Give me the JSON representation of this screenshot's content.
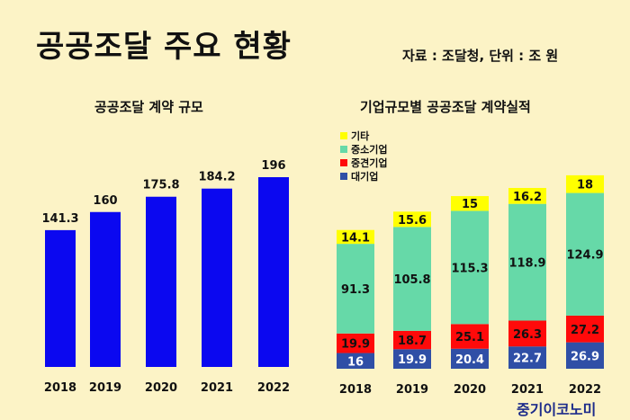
{
  "header": {
    "title": "공공조달 주요 현황",
    "source": "자료 : 조달청, 단위 : 조 원"
  },
  "brand": "중기이코노미",
  "colors": {
    "background": "#fcf3c6",
    "bar_blue": "#0b08f0",
    "etc_yellow": "#ffff00",
    "small_green": "#66d9a8",
    "mid_red": "#ff0a0a",
    "large_blue": "#2f4fa6"
  },
  "chart_data": [
    {
      "type": "bar",
      "title": "공공조달 계약 규모",
      "categories": [
        "2018",
        "2019",
        "2020",
        "2021",
        "2022"
      ],
      "values": [
        141.3,
        160,
        175.8,
        184.2,
        196
      ],
      "labels": [
        "141.3",
        "160",
        "175.8",
        "184.2",
        "196"
      ],
      "ylim": [
        0,
        220
      ],
      "grid": false,
      "legend": "none"
    },
    {
      "type": "bar",
      "stacked": true,
      "title": "기업규모별 공공조달 계약실적",
      "categories": [
        "2018",
        "2019",
        "2020",
        "2021",
        "2022"
      ],
      "series": [
        {
          "name": "대기업",
          "color": "#2f4fa6",
          "values": [
            16,
            19.9,
            20.4,
            22.7,
            26.9
          ],
          "labels": [
            "16",
            "19.9",
            "20.4",
            "22.7",
            "26.9"
          ]
        },
        {
          "name": "중견기업",
          "color": "#ff0a0a",
          "values": [
            19.9,
            18.7,
            25.1,
            26.3,
            27.2
          ],
          "labels": [
            "19.9",
            "18.7",
            "25.1",
            "26.3",
            "27.2"
          ]
        },
        {
          "name": "중소기업",
          "color": "#66d9a8",
          "values": [
            91.3,
            105.8,
            115.3,
            118.9,
            124.9
          ],
          "labels": [
            "91.3",
            "105.8",
            "115.3",
            "118.9",
            "124.9"
          ]
        },
        {
          "name": "기타",
          "color": "#ffff00",
          "values": [
            14.1,
            15.6,
            15,
            16.2,
            18
          ],
          "labels": [
            "14.1",
            "15.6",
            "15",
            "16.2",
            "18"
          ]
        }
      ],
      "legend_order": [
        3,
        2,
        1,
        0
      ],
      "ylim": [
        0,
        200
      ],
      "grid": false,
      "legend": "top-left"
    }
  ]
}
